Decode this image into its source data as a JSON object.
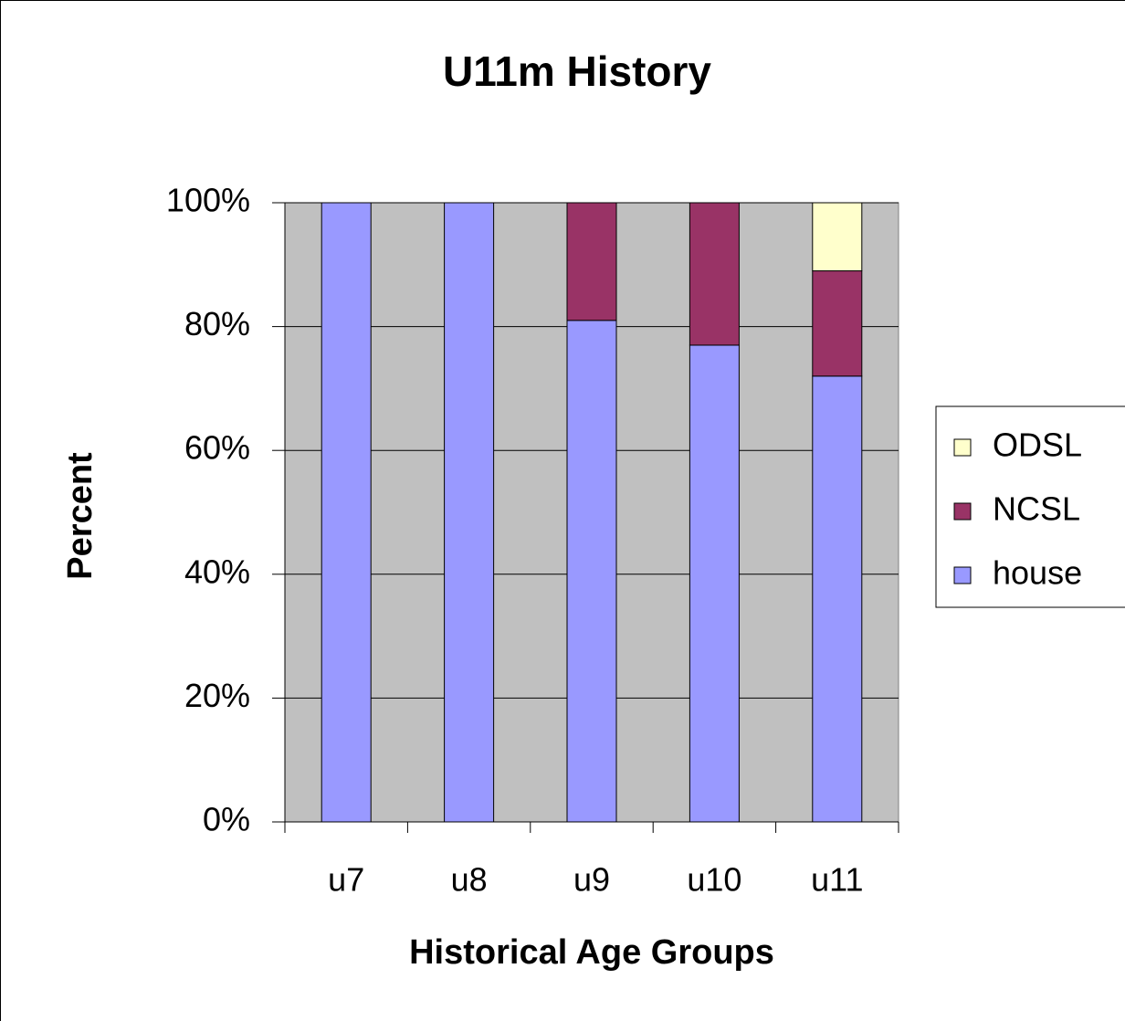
{
  "chart_data": {
    "type": "stacked-bar",
    "title": "U11m History",
    "x_label": "Historical Age Groups",
    "y_label": "Percent",
    "categories": [
      "u7",
      "u8",
      "u9",
      "u10",
      "u11"
    ],
    "series": [
      {
        "name": "house",
        "color": "#9999ff",
        "values": [
          100,
          100,
          81,
          77,
          72
        ]
      },
      {
        "name": "NCSL",
        "color": "#993366",
        "values": [
          0,
          0,
          19,
          23,
          17
        ]
      },
      {
        "name": "ODSL",
        "color": "#ffffcc",
        "values": [
          0,
          0,
          0,
          0,
          11
        ]
      }
    ],
    "ylim": [
      0,
      100
    ],
    "yticks": [
      {
        "value": 0,
        "label": "0%"
      },
      {
        "value": 20,
        "label": "20%"
      },
      {
        "value": 40,
        "label": "40%"
      },
      {
        "value": 60,
        "label": "60%"
      },
      {
        "value": 80,
        "label": "80%"
      },
      {
        "value": 100,
        "label": "100%"
      }
    ],
    "grid": true,
    "plot_background": "#c0c0c0",
    "legend": "right"
  }
}
